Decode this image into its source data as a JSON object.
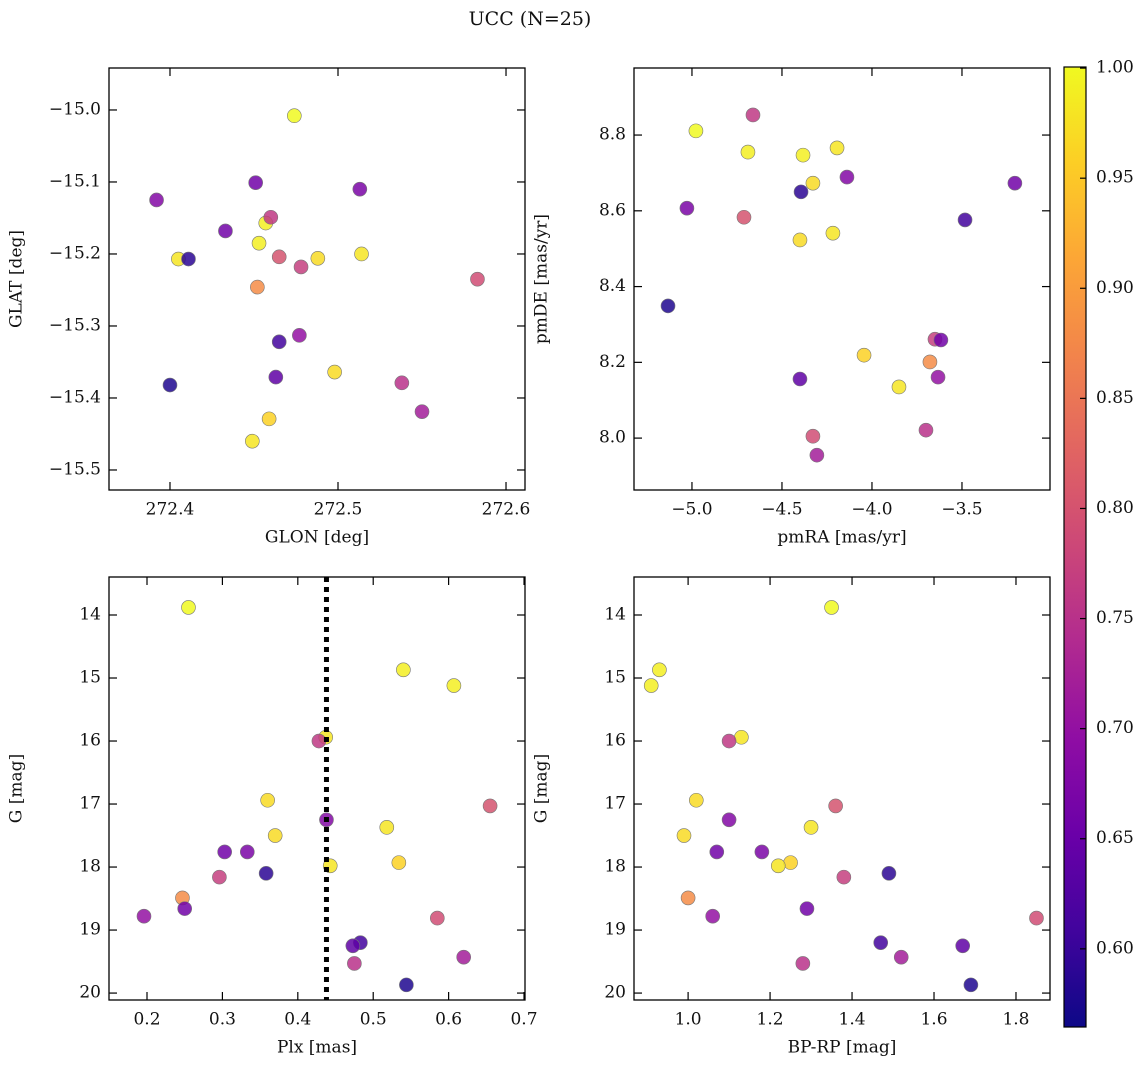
{
  "title": "UCC (N=25)",
  "colorbar": {
    "colormap": "plasma",
    "lim": [
      0.5645,
      1.0005
    ],
    "ticks": [
      {
        "value": 0.6,
        "label": "0.60"
      },
      {
        "value": 0.65,
        "label": "0.65"
      },
      {
        "value": 0.7,
        "label": "0.70"
      },
      {
        "value": 0.75,
        "label": "0.75"
      },
      {
        "value": 0.8,
        "label": "0.80"
      },
      {
        "value": 0.85,
        "label": "0.85"
      },
      {
        "value": 0.9,
        "label": "0.90"
      },
      {
        "value": 0.95,
        "label": "0.95"
      },
      {
        "value": 1.0,
        "label": "1.00"
      }
    ]
  },
  "colors": [
    1.0,
    0.99,
    0.99,
    0.98,
    0.76,
    0.97,
    0.8,
    0.68,
    0.98,
    0.97,
    0.66,
    0.67,
    0.96,
    0.98,
    0.77,
    0.59,
    0.88,
    0.66,
    0.7,
    0.79,
    0.61,
    0.64,
    0.72,
    0.75,
    0.58
  ],
  "chart_data": [
    {
      "type": "scatter",
      "xlabel": "GLON [deg]",
      "ylabel": "GLAT [deg]",
      "x": [
        272.474,
        272.457,
        272.453,
        272.405,
        272.46,
        272.488,
        272.465,
        272.392,
        272.514,
        272.498,
        272.451,
        272.513,
        272.459,
        272.449,
        272.478,
        272.411,
        272.452,
        272.433,
        272.477,
        272.583,
        272.465,
        272.463,
        272.55,
        272.538,
        272.4
      ],
      "y": [
        -15.008,
        -15.157,
        -15.185,
        -15.207,
        -15.149,
        -15.206,
        -15.204,
        -15.125,
        -15.2,
        -15.364,
        -15.101,
        -15.11,
        -15.429,
        -15.46,
        -15.218,
        -15.207,
        -15.246,
        -15.168,
        -15.313,
        -15.235,
        -15.322,
        -15.371,
        -15.419,
        -15.379,
        -15.382
      ],
      "xlim": [
        272.3637,
        272.6113
      ],
      "ylim": [
        -15.5278,
        -14.9417
      ],
      "xticks": [
        272.4,
        272.5,
        272.6
      ],
      "yticks": [
        {
          "value": -15.5,
          "label": "−15.5"
        },
        {
          "value": -15.4,
          "label": "−15.4"
        },
        {
          "value": -15.3,
          "label": "−15.3"
        },
        {
          "value": -15.2,
          "label": "−15.2"
        },
        {
          "value": -15.1,
          "label": "−15.1"
        },
        {
          "value": -15.0,
          "label": "−15.0"
        }
      ]
    },
    {
      "type": "scatter",
      "xlabel": "pmRA [mas/yr]",
      "ylabel": "pmDE [mas/yr]",
      "x": [
        -4.978,
        -4.689,
        -4.383,
        -4.194,
        -4.661,
        -4.328,
        -4.711,
        -4.139,
        -4.217,
        -4.4,
        -3.206,
        -5.028,
        -4.044,
        -3.85,
        -3.65,
        -4.394,
        -3.678,
        -3.617,
        -3.633,
        -4.328,
        -3.483,
        -4.4,
        -4.306,
        -3.7,
        -5.133
      ],
      "y": [
        8.811,
        8.755,
        8.747,
        8.766,
        8.853,
        8.673,
        8.583,
        8.689,
        8.541,
        8.523,
        8.673,
        8.607,
        8.219,
        8.135,
        8.261,
        8.65,
        8.201,
        8.259,
        8.161,
        8.005,
        8.576,
        8.156,
        7.955,
        8.021,
        8.349
      ],
      "xlim": [
        -5.322,
        -3.011
      ],
      "ylim": [
        7.863,
        8.977
      ],
      "xticks": [
        {
          "value": -5.0,
          "label": "−5.0"
        },
        {
          "value": -4.5,
          "label": "−4.5"
        },
        {
          "value": -4.0,
          "label": "−4.0"
        },
        {
          "value": -3.5,
          "label": "−3.5"
        }
      ],
      "yticks": [
        {
          "value": 8.0,
          "label": "8.0"
        },
        8.2,
        8.4,
        8.6,
        8.8
      ]
    },
    {
      "type": "scatter",
      "xlabel": "Plx [mas]",
      "ylabel": "G [mag]",
      "x": [
        0.255,
        0.54,
        0.607,
        0.437,
        0.428,
        0.36,
        0.655,
        0.438,
        0.518,
        0.37,
        0.303,
        0.333,
        0.534,
        0.443,
        0.296,
        0.358,
        0.247,
        0.25,
        0.196,
        0.585,
        0.483,
        0.473,
        0.62,
        0.475,
        0.544
      ],
      "y": [
        13.88,
        14.87,
        15.12,
        15.94,
        16.0,
        16.94,
        17.03,
        17.25,
        17.37,
        17.5,
        17.76,
        17.76,
        17.93,
        17.98,
        18.16,
        18.1,
        18.49,
        18.66,
        18.78,
        18.81,
        19.2,
        19.25,
        19.43,
        19.53,
        19.87
      ],
      "vline": 0.438,
      "xlim": [
        0.1496,
        0.7013
      ],
      "ylim": [
        20.11,
        13.397
      ],
      "xticks": [
        0.2,
        0.3,
        0.4,
        0.5,
        0.6,
        0.7
      ],
      "yticks": [
        14,
        15,
        16,
        17,
        18,
        19,
        20
      ]
    },
    {
      "type": "scatter",
      "xlabel": "BP-RP [mag]",
      "ylabel": "G [mag]",
      "x": [
        1.35,
        0.93,
        0.91,
        1.13,
        1.1,
        1.02,
        1.36,
        1.1,
        1.3,
        0.99,
        1.07,
        1.18,
        1.25,
        1.22,
        1.38,
        1.49,
        1.0,
        1.29,
        1.06,
        1.85,
        1.47,
        1.67,
        1.52,
        1.28,
        1.69
      ],
      "y": [
        13.88,
        14.87,
        15.12,
        15.94,
        16.0,
        16.94,
        17.03,
        17.25,
        17.37,
        17.5,
        17.76,
        17.76,
        17.93,
        17.98,
        18.16,
        18.1,
        18.49,
        18.66,
        18.78,
        18.81,
        19.2,
        19.25,
        19.43,
        19.53,
        19.87
      ],
      "xlim": [
        0.868,
        1.883
      ],
      "ylim": [
        20.11,
        13.397
      ],
      "xticks": [
        {
          "value": 1.0,
          "label": "1.0"
        },
        1.2,
        1.4,
        1.6,
        1.8
      ],
      "yticks": [
        14,
        15,
        16,
        17,
        18,
        19,
        20
      ]
    }
  ]
}
